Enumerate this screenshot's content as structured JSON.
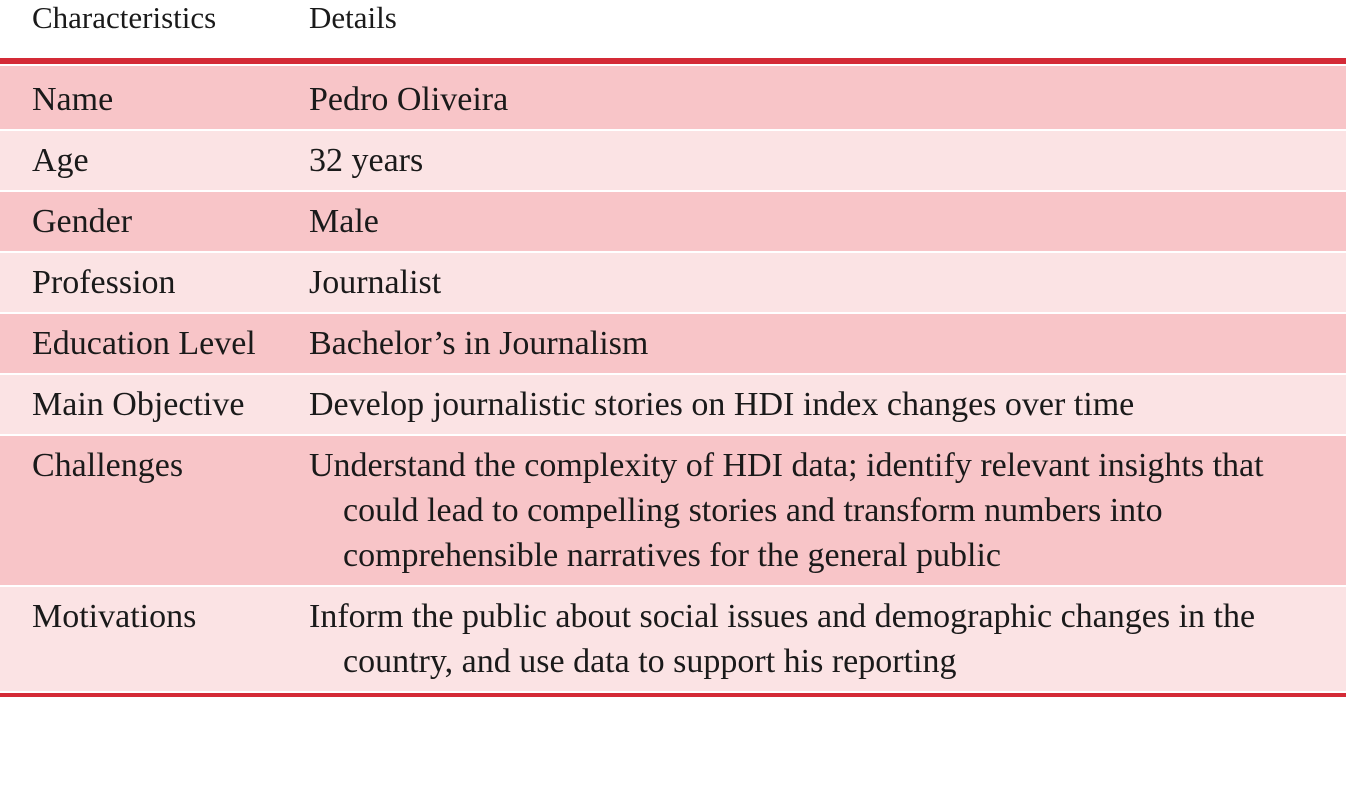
{
  "table": {
    "columns": [
      "Characteristics",
      "Details"
    ],
    "rows": [
      [
        "Name",
        "Pedro Oliveira"
      ],
      [
        "Age",
        "32 years"
      ],
      [
        "Gender",
        "Male"
      ],
      [
        "Profession",
        "Journalist"
      ],
      [
        "Education Level",
        "Bachelor’s in Journalism"
      ],
      [
        "Main Objective",
        "Develop journalistic stories on HDI index changes over time"
      ],
      [
        "Challenges",
        "Understand the complexity of HDI data; identify relevant insights that could lead to compelling stories and transform numbers into comprehensible narratives for the general public"
      ],
      [
        "Motivations",
        "Inform the public about social issues and demographic changes in the country, and use data to support his reporting"
      ]
    ]
  }
}
